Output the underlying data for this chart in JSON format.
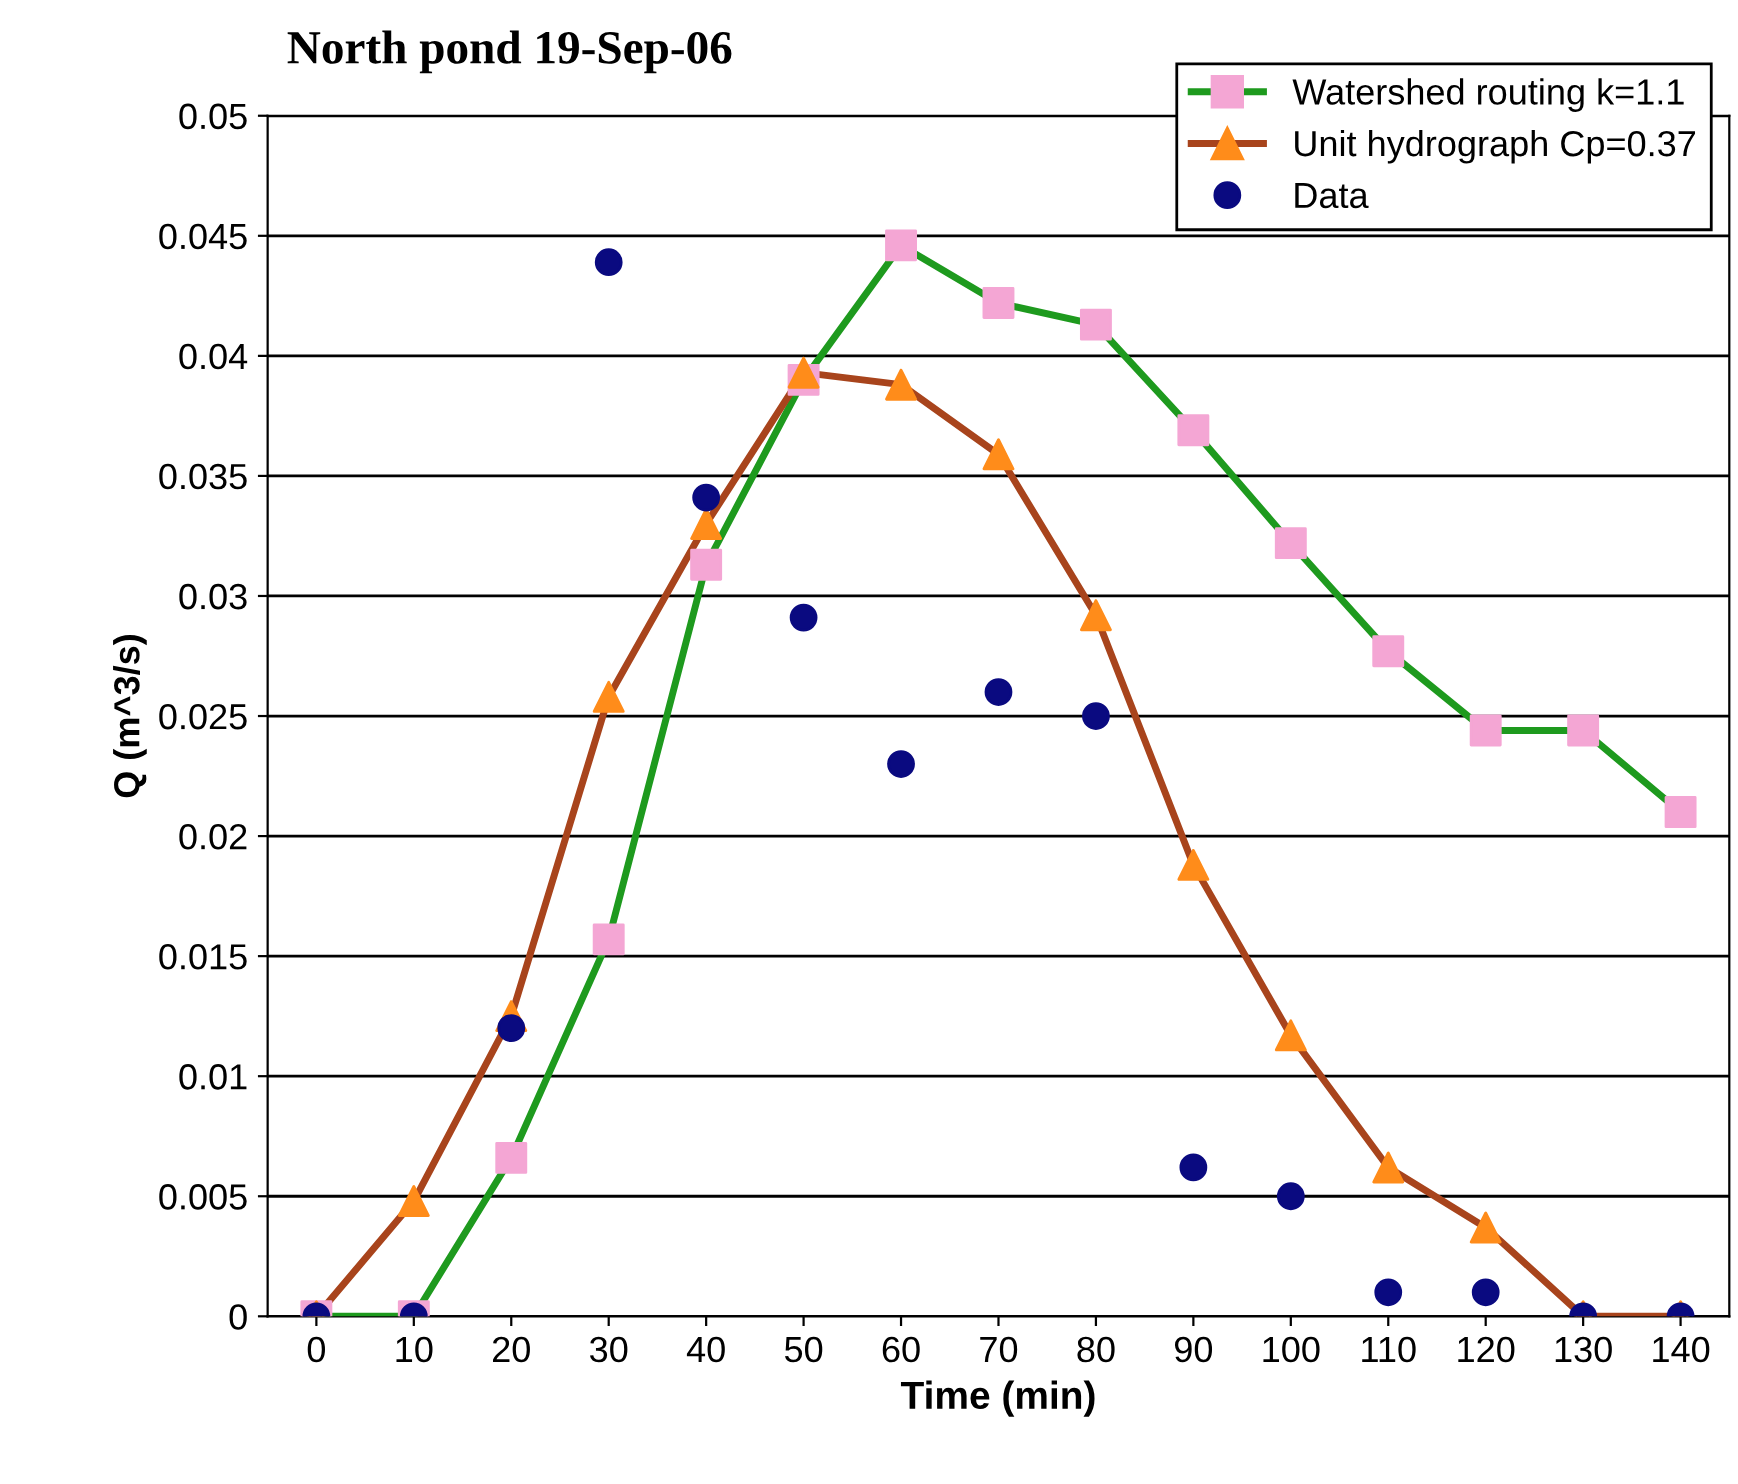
{
  "chart_data": {
    "type": "line",
    "title": "North pond 19-Sep-06",
    "xlabel": "Time (min)",
    "ylabel": "Q (m^3/s)",
    "categories": [
      "0",
      "10",
      "20",
      "30",
      "40",
      "50",
      "60",
      "70",
      "80",
      "90",
      "100",
      "110",
      "120",
      "130",
      "140"
    ],
    "series": [
      {
        "name": "Watershed routing k=1.1",
        "marker": "square",
        "color": "#1e9a1e",
        "colors": [
          "#f4a6d4",
          "#f4a6d4",
          "#f4a6d4",
          "#f4a6d4",
          "#f4a6d4",
          "#f4a6d4",
          "#f4a6d4",
          "#f4a6d4",
          "#f4a6d4",
          "#f4a6d4",
          "#f4a6d4",
          "#f4a6d4",
          "#f4a6d4",
          "#f4a6d4",
          "#f4a6d4"
        ],
        "values": [
          0,
          0,
          0.0066,
          0.0157,
          0.0313,
          0.039,
          0.0446,
          0.0422,
          0.0413,
          0.0369,
          0.0322,
          0.0277,
          0.0244,
          0.0244,
          0.021
        ]
      },
      {
        "name": "Unit hydrograph Cp=0.37",
        "marker": "triangle",
        "color": "#a8441c",
        "colors": [
          "#ff8c1a",
          "#ff8c1a",
          "#ff8c1a",
          "#ff8c1a",
          "#ff8c1a",
          "#ff8c1a",
          "#ff8c1a",
          "#ff8c1a",
          "#ff8c1a",
          "#ff8c1a",
          "#ff8c1a",
          "#ff8c1a",
          "#ff8c1a",
          "#ff8c1a",
          "#ff8c1a"
        ],
        "values": [
          0,
          0.0048,
          0.0125,
          0.0258,
          0.033,
          0.0393,
          0.0388,
          0.0359,
          0.0292,
          0.0188,
          0.0117,
          0.0062,
          0.0037,
          0,
          0
        ]
      },
      {
        "name": "Data",
        "type": "scatter",
        "marker": "circle",
        "color": "#0a0a80",
        "values": [
          0,
          0,
          0.012,
          0.0439,
          0.0341,
          0.0291,
          0.023,
          0.026,
          0.025,
          0.0062,
          0.005,
          0.001,
          0.001,
          0,
          0
        ]
      }
    ],
    "ylim": [
      0,
      0.05
    ],
    "yticks": [
      0,
      0.005,
      0.01,
      0.015,
      0.02,
      0.025,
      0.03,
      0.035,
      0.04,
      0.045,
      0.05
    ],
    "grid": "y",
    "legend": "top right"
  }
}
